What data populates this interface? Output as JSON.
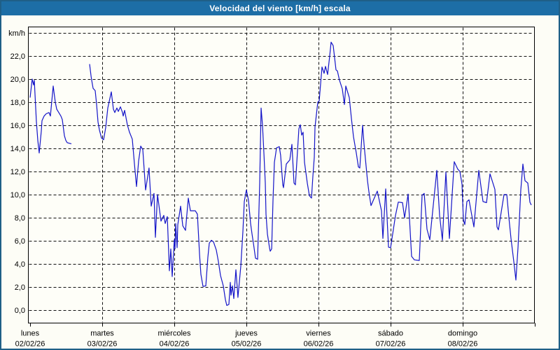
{
  "window": {
    "title": "Velocidad del viento [km/h] escala"
  },
  "colors": {
    "titlebar": "#1d6ea6",
    "window_border": "#1f5f87",
    "line": "#1414c8",
    "grid": "#111111",
    "plot_bg": "#fefef8"
  },
  "chart_data": {
    "type": "line",
    "title": "Velocidad del viento [km/h] escala",
    "ylabel": "km/h",
    "unit": "km/h",
    "ylim": [
      0,
      24
    ],
    "ytick_step": 2,
    "grid": "dashed",
    "legend": "none",
    "yticks": [
      {
        "v": 0,
        "label": "0,0"
      },
      {
        "v": 2,
        "label": "2,0"
      },
      {
        "v": 4,
        "label": "4,0"
      },
      {
        "v": 6,
        "label": "6,0"
      },
      {
        "v": 8,
        "label": "8,0"
      },
      {
        "v": 10,
        "label": "10,0"
      },
      {
        "v": 12,
        "label": "12,0"
      },
      {
        "v": 14,
        "label": "14,0"
      },
      {
        "v": 16,
        "label": "16,0"
      },
      {
        "v": 18,
        "label": "18,0"
      },
      {
        "v": 20,
        "label": "20,0"
      },
      {
        "v": 22,
        "label": "22,0"
      },
      {
        "v": 24,
        "label": "km/h"
      }
    ],
    "x_days": [
      {
        "name": "lunes",
        "date": "02/02/26"
      },
      {
        "name": "martes",
        "date": "03/02/26"
      },
      {
        "name": "miércoles",
        "date": "04/02/26"
      },
      {
        "name": "jueves",
        "date": "05/02/26"
      },
      {
        "name": "viernes",
        "date": "06/02/26"
      },
      {
        "name": "sábado",
        "date": "07/02/26"
      },
      {
        "name": "domingo",
        "date": "08/02/26"
      }
    ],
    "series": [
      {
        "name": "velocidad del viento",
        "segments": [
          [
            [
              0,
              18.4
            ],
            [
              0.029,
              20.0
            ],
            [
              0.049,
              19.5
            ],
            [
              0.058,
              19.9
            ],
            [
              0.087,
              16.3
            ],
            [
              0.107,
              14.7
            ],
            [
              0.126,
              13.6
            ],
            [
              0.155,
              15.5
            ],
            [
              0.165,
              16.4
            ],
            [
              0.194,
              16.8
            ],
            [
              0.223,
              17.0
            ],
            [
              0.262,
              17.1
            ],
            [
              0.282,
              16.8
            ],
            [
              0.32,
              19.4
            ],
            [
              0.35,
              18.0
            ],
            [
              0.369,
              17.4
            ],
            [
              0.388,
              17.2
            ],
            [
              0.427,
              16.8
            ],
            [
              0.447,
              16.5
            ],
            [
              0.476,
              15.1
            ],
            [
              0.495,
              14.7
            ],
            [
              0.515,
              14.5
            ],
            [
              0.573,
              14.4
            ]
          ],
          [
            [
              0.825,
              21.3
            ],
            [
              0.845,
              20.3
            ],
            [
              0.854,
              19.9
            ],
            [
              0.874,
              19.2
            ],
            [
              0.903,
              19.0
            ],
            [
              0.922,
              17.8
            ],
            [
              0.942,
              16.3
            ],
            [
              0.961,
              15.6
            ],
            [
              0.99,
              14.9
            ],
            [
              1.019,
              14.75
            ],
            [
              1.049,
              15.8
            ],
            [
              1.078,
              17.5
            ],
            [
              1.126,
              18.9
            ],
            [
              1.155,
              17.4
            ],
            [
              1.175,
              17.1
            ],
            [
              1.204,
              17.5
            ],
            [
              1.223,
              17.2
            ],
            [
              1.252,
              17.6
            ],
            [
              1.282,
              17.1
            ],
            [
              1.291,
              16.8
            ],
            [
              1.311,
              17.3
            ],
            [
              1.35,
              16.0
            ],
            [
              1.379,
              15.4
            ],
            [
              1.417,
              14.8
            ],
            [
              1.447,
              12.7
            ],
            [
              1.476,
              10.7
            ],
            [
              1.505,
              12.9
            ],
            [
              1.534,
              14.2
            ],
            [
              1.563,
              13.9
            ],
            [
              1.602,
              10.4
            ],
            [
              1.65,
              12.3
            ],
            [
              1.68,
              9.0
            ],
            [
              1.718,
              10.1
            ],
            [
              1.738,
              6.3
            ],
            [
              1.767,
              10.0
            ],
            [
              1.816,
              7.7
            ],
            [
              1.854,
              8.2
            ],
            [
              1.874,
              7.5
            ],
            [
              1.903,
              8.1
            ],
            [
              1.932,
              3.4
            ],
            [
              1.951,
              5.3
            ],
            [
              1.971,
              2.9
            ],
            [
              2.0,
              6.1
            ],
            [
              2.01,
              5.3
            ],
            [
              2.019,
              7.5
            ],
            [
              2.039,
              5.4
            ],
            [
              2.049,
              7.4
            ],
            [
              2.087,
              9.0
            ],
            [
              2.117,
              7.3
            ],
            [
              2.155,
              6.9
            ],
            [
              2.194,
              9.7
            ],
            [
              2.223,
              8.6
            ],
            [
              2.291,
              8.6
            ],
            [
              2.32,
              8.3
            ],
            [
              2.35,
              4.8
            ],
            [
              2.369,
              3.1
            ],
            [
              2.398,
              2.05
            ],
            [
              2.437,
              2.1
            ],
            [
              2.466,
              4.6
            ],
            [
              2.485,
              5.8
            ],
            [
              2.515,
              6.05
            ],
            [
              2.544,
              5.9
            ],
            [
              2.583,
              5.2
            ],
            [
              2.612,
              4.2
            ],
            [
              2.641,
              3.0
            ],
            [
              2.68,
              2.1
            ],
            [
              2.709,
              0.9
            ],
            [
              2.728,
              0.4
            ],
            [
              2.757,
              0.5
            ],
            [
              2.777,
              2.4
            ],
            [
              2.786,
              1.3
            ],
            [
              2.806,
              2.1
            ],
            [
              2.825,
              1.0
            ],
            [
              2.854,
              3.5
            ],
            [
              2.874,
              1.9
            ],
            [
              2.883,
              1.1
            ],
            [
              2.922,
              3.8
            ],
            [
              2.951,
              6.8
            ],
            [
              2.971,
              9.4
            ],
            [
              3.0,
              10.4
            ],
            [
              3.029,
              9.5
            ],
            [
              3.058,
              7.5
            ],
            [
              3.078,
              6.6
            ],
            [
              3.097,
              5.8
            ],
            [
              3.126,
              4.5
            ],
            [
              3.155,
              4.4
            ],
            [
              3.184,
              11.0
            ],
            [
              3.204,
              17.5
            ],
            [
              3.223,
              16.0
            ],
            [
              3.243,
              13.6
            ],
            [
              3.262,
              11.0
            ],
            [
              3.272,
              8.3
            ],
            [
              3.291,
              6.6
            ],
            [
              3.32,
              5.4
            ],
            [
              3.33,
              5.1
            ],
            [
              3.35,
              5.3
            ],
            [
              3.369,
              9.5
            ],
            [
              3.388,
              12.8
            ],
            [
              3.408,
              13.6
            ],
            [
              3.417,
              14.05
            ],
            [
              3.456,
              14.15
            ],
            [
              3.475,
              13.4
            ],
            [
              3.505,
              10.85
            ],
            [
              3.515,
              10.6
            ],
            [
              3.553,
              12.65
            ],
            [
              3.602,
              13.0
            ],
            [
              3.631,
              14.35
            ],
            [
              3.66,
              11.0
            ],
            [
              3.68,
              10.85
            ],
            [
              3.728,
              15.7
            ],
            [
              3.748,
              16.05
            ],
            [
              3.767,
              15.15
            ],
            [
              3.786,
              15.4
            ],
            [
              3.806,
              12.8
            ],
            [
              3.845,
              11.0
            ],
            [
              3.874,
              9.9
            ],
            [
              3.903,
              9.7
            ],
            [
              3.922,
              11.6
            ],
            [
              3.942,
              13.25
            ],
            [
              3.951,
              15.85
            ],
            [
              3.99,
              18.0
            ],
            [
              4.01,
              18.1
            ],
            [
              4.049,
              21.05
            ],
            [
              4.078,
              20.5
            ],
            [
              4.097,
              21.1
            ],
            [
              4.126,
              20.4
            ],
            [
              4.155,
              22.0
            ],
            [
              4.175,
              23.2
            ],
            [
              4.204,
              22.9
            ],
            [
              4.243,
              20.8
            ],
            [
              4.262,
              20.7
            ],
            [
              4.291,
              19.9
            ],
            [
              4.33,
              19.15
            ],
            [
              4.359,
              17.8
            ],
            [
              4.379,
              19.4
            ],
            [
              4.427,
              18.4
            ],
            [
              4.456,
              16.6
            ],
            [
              4.485,
              15.0
            ],
            [
              4.524,
              13.6
            ],
            [
              4.553,
              12.4
            ],
            [
              4.573,
              12.3
            ],
            [
              4.612,
              16.0
            ],
            [
              4.631,
              14.4
            ],
            [
              4.65,
              13.1
            ],
            [
              4.68,
              11.2
            ],
            [
              4.699,
              10.25
            ],
            [
              4.728,
              9.05
            ],
            [
              4.816,
              10.3
            ],
            [
              4.874,
              8.6
            ],
            [
              4.893,
              6.2
            ],
            [
              4.932,
              10.5
            ],
            [
              4.971,
              5.45
            ],
            [
              5.0,
              5.4
            ],
            [
              5.068,
              8.2
            ],
            [
              5.107,
              9.35
            ],
            [
              5.165,
              9.3
            ],
            [
              5.194,
              8.0
            ],
            [
              5.243,
              10.05
            ],
            [
              5.291,
              4.65
            ],
            [
              5.33,
              4.35
            ],
            [
              5.398,
              4.3
            ],
            [
              5.437,
              9.95
            ],
            [
              5.466,
              10.1
            ],
            [
              5.505,
              7.0
            ],
            [
              5.544,
              6.1
            ],
            [
              5.641,
              12.1
            ],
            [
              5.68,
              8.2
            ],
            [
              5.718,
              6.05
            ],
            [
              5.767,
              11.95
            ],
            [
              5.816,
              6.2
            ],
            [
              5.883,
              12.85
            ],
            [
              5.932,
              12.2
            ],
            [
              5.961,
              12.0
            ],
            [
              5.99,
              10.9
            ],
            [
              6.01,
              7.8
            ],
            [
              6.029,
              7.4
            ],
            [
              6.058,
              9.4
            ],
            [
              6.087,
              9.55
            ],
            [
              6.126,
              8.2
            ],
            [
              6.155,
              7.2
            ],
            [
              6.223,
              12.1
            ],
            [
              6.282,
              9.4
            ],
            [
              6.33,
              9.3
            ],
            [
              6.379,
              11.8
            ],
            [
              6.447,
              10.45
            ],
            [
              6.476,
              7.2
            ],
            [
              6.495,
              6.95
            ],
            [
              6.573,
              10.0
            ],
            [
              6.612,
              10.0
            ],
            [
              6.641,
              8.0
            ],
            [
              6.67,
              6.2
            ],
            [
              6.709,
              4.2
            ],
            [
              6.738,
              2.6
            ],
            [
              6.767,
              5.4
            ],
            [
              6.806,
              10.4
            ],
            [
              6.835,
              12.65
            ],
            [
              6.864,
              11.2
            ],
            [
              6.903,
              11.0
            ],
            [
              6.932,
              9.35
            ],
            [
              6.951,
              9.1
            ]
          ]
        ]
      }
    ]
  }
}
